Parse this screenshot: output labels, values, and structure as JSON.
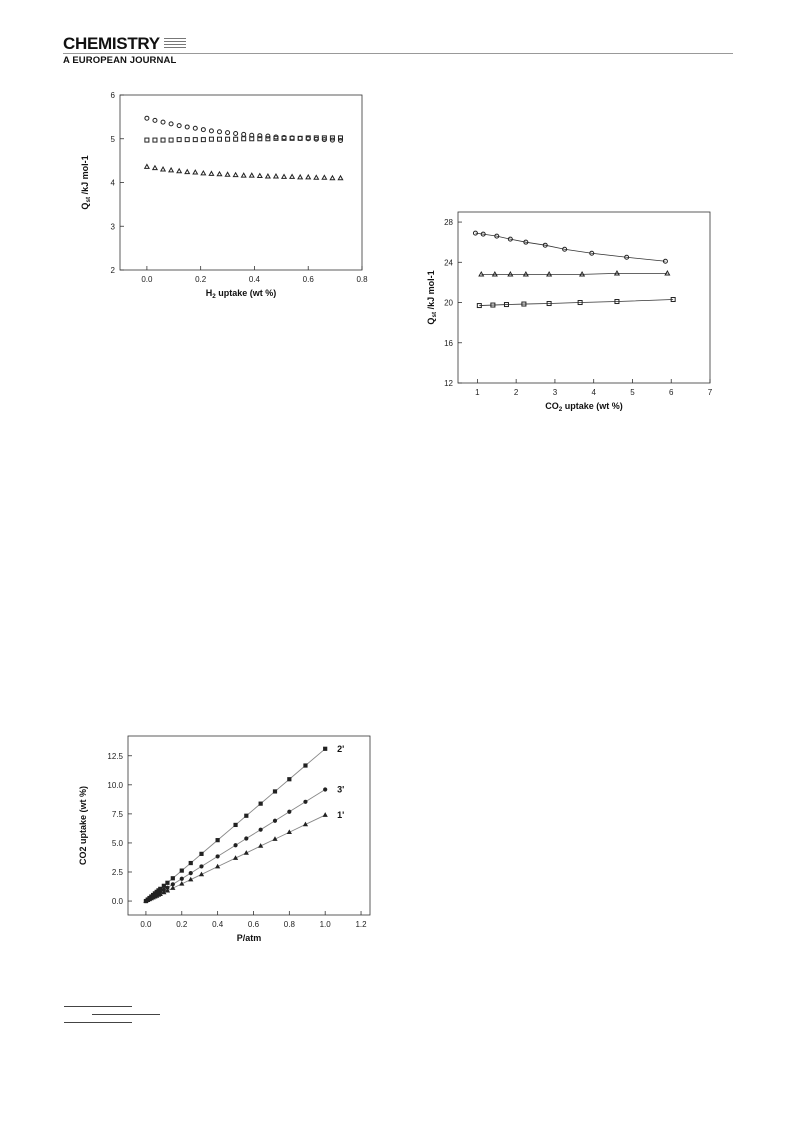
{
  "header": {
    "journal_title": "CHEMISTRY",
    "journal_subtitle": "A EUROPEAN JOURNAL"
  },
  "chart_data": [
    {
      "id": "h2_qst",
      "type": "scatter",
      "title": "",
      "xlabel": "H2 uptake (wt %)",
      "ylabel": "Qst /kJ mol-1",
      "xlim": [
        -0.1,
        0.8
      ],
      "ylim": [
        2,
        6
      ],
      "xticks": [
        "0.0",
        "0.2",
        "0.4",
        "0.6",
        "0.8"
      ],
      "yticks": [
        "2",
        "3",
        "4",
        "5",
        "6"
      ],
      "grid": false,
      "series": [
        {
          "marker": "circle",
          "x": [
            0.0,
            0.03,
            0.06,
            0.09,
            0.12,
            0.15,
            0.18,
            0.21,
            0.24,
            0.27,
            0.3,
            0.33,
            0.36,
            0.39,
            0.42,
            0.45,
            0.48,
            0.51,
            0.54,
            0.57,
            0.6,
            0.63,
            0.66,
            0.69,
            0.72
          ],
          "y": [
            5.47,
            5.42,
            5.38,
            5.34,
            5.3,
            5.27,
            5.24,
            5.21,
            5.18,
            5.16,
            5.14,
            5.12,
            5.1,
            5.08,
            5.07,
            5.06,
            5.04,
            5.03,
            5.02,
            5.01,
            5.0,
            4.99,
            4.98,
            4.97,
            4.96
          ]
        },
        {
          "marker": "square",
          "x": [
            0.0,
            0.03,
            0.06,
            0.09,
            0.12,
            0.15,
            0.18,
            0.21,
            0.24,
            0.27,
            0.3,
            0.33,
            0.36,
            0.39,
            0.42,
            0.45,
            0.48,
            0.51,
            0.54,
            0.57,
            0.6,
            0.63,
            0.66,
            0.69,
            0.72
          ],
          "y": [
            4.97,
            4.97,
            4.97,
            4.97,
            4.98,
            4.98,
            4.98,
            4.98,
            4.99,
            4.99,
            4.99,
            4.99,
            5.0,
            5.0,
            5.0,
            5.0,
            5.01,
            5.01,
            5.01,
            5.01,
            5.02,
            5.02,
            5.02,
            5.02,
            5.02
          ]
        },
        {
          "marker": "triangle",
          "x": [
            0.0,
            0.03,
            0.06,
            0.09,
            0.12,
            0.15,
            0.18,
            0.21,
            0.24,
            0.27,
            0.3,
            0.33,
            0.36,
            0.39,
            0.42,
            0.45,
            0.48,
            0.51,
            0.54,
            0.57,
            0.6,
            0.63,
            0.66,
            0.69,
            0.72
          ],
          "y": [
            4.36,
            4.33,
            4.3,
            4.28,
            4.26,
            4.24,
            4.23,
            4.21,
            4.2,
            4.19,
            4.18,
            4.17,
            4.16,
            4.16,
            4.15,
            4.14,
            4.14,
            4.13,
            4.13,
            4.12,
            4.12,
            4.11,
            4.11,
            4.1,
            4.1
          ]
        }
      ]
    },
    {
      "id": "co2_qst",
      "type": "line",
      "title": "",
      "xlabel": "CO2 uptake (wt %)",
      "ylabel": "Qst /kJ mol-1",
      "xlim": [
        0.5,
        7
      ],
      "ylim": [
        12,
        29
      ],
      "xticks": [
        "1",
        "2",
        "3",
        "4",
        "5",
        "6",
        "7"
      ],
      "yticks": [
        "12",
        "16",
        "20",
        "24",
        "28"
      ],
      "grid": false,
      "series": [
        {
          "marker": "circle",
          "x": [
            0.95,
            1.15,
            1.5,
            1.85,
            2.25,
            2.75,
            3.25,
            3.95,
            4.85,
            5.85
          ],
          "y": [
            26.9,
            26.8,
            26.6,
            26.3,
            26.0,
            25.7,
            25.3,
            24.9,
            24.5,
            24.1
          ]
        },
        {
          "marker": "triangle",
          "x": [
            1.1,
            1.45,
            1.85,
            2.25,
            2.85,
            3.7,
            4.6,
            5.9
          ],
          "y": [
            22.8,
            22.8,
            22.8,
            22.8,
            22.8,
            22.8,
            22.9,
            22.9
          ]
        },
        {
          "marker": "square",
          "x": [
            1.05,
            1.4,
            1.75,
            2.2,
            2.85,
            3.65,
            4.6,
            6.05
          ],
          "y": [
            19.7,
            19.75,
            19.8,
            19.85,
            19.9,
            20.0,
            20.1,
            20.3
          ]
        }
      ]
    },
    {
      "id": "co2_isotherm",
      "type": "line",
      "title": "",
      "xlabel": "P/atm",
      "ylabel": "CO2 uptake (wt %)",
      "xlim": [
        -0.1,
        1.25
      ],
      "ylim": [
        -1.2,
        14.2
      ],
      "xticks": [
        "0.0",
        "0.2",
        "0.4",
        "0.6",
        "0.8",
        "1.0",
        "1.2"
      ],
      "yticks": [
        "0.0",
        "2.5",
        "5.0",
        "7.5",
        "10.0",
        "12.5"
      ],
      "grid": false,
      "series": [
        {
          "name": "2'",
          "marker": "square",
          "slope": 13.1,
          "x": [
            0.0,
            0.01,
            0.02,
            0.03,
            0.04,
            0.05,
            0.06,
            0.07,
            0.08,
            0.1,
            0.12,
            0.15,
            0.2,
            0.25,
            0.31,
            0.4,
            0.5,
            0.56,
            0.64,
            0.72,
            0.8,
            0.89,
            1.0
          ]
        },
        {
          "name": "3'",
          "marker": "circle",
          "slope": 9.6,
          "x": [
            0.0,
            0.01,
            0.02,
            0.03,
            0.04,
            0.05,
            0.06,
            0.07,
            0.08,
            0.1,
            0.12,
            0.15,
            0.2,
            0.25,
            0.31,
            0.4,
            0.5,
            0.56,
            0.64,
            0.72,
            0.8,
            0.89,
            1.0
          ]
        },
        {
          "name": "1'",
          "marker": "triangle",
          "slope": 7.4,
          "x": [
            0.0,
            0.01,
            0.02,
            0.03,
            0.04,
            0.05,
            0.06,
            0.07,
            0.08,
            0.1,
            0.12,
            0.15,
            0.2,
            0.25,
            0.31,
            0.4,
            0.5,
            0.56,
            0.64,
            0.72,
            0.8,
            0.89,
            1.0
          ]
        }
      ]
    }
  ]
}
